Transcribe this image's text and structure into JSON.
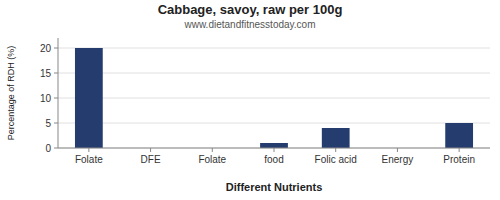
{
  "chart_data": {
    "type": "bar",
    "title": "Cabbage, savoy, raw per 100g",
    "subtitle": "www.dietandfitnesstoday.com",
    "x_label": "Different Nutrients",
    "y_label": "Percentage of RDH (%)",
    "categories": [
      "Folate",
      "DFE",
      "Folate",
      "food",
      "Folic acid",
      "Energy",
      "Protein"
    ],
    "values": [
      20,
      0,
      0,
      1,
      4,
      0,
      5
    ],
    "color": "#253c6e",
    "ylim": [
      0,
      22
    ],
    "yticks": [
      0,
      5,
      10,
      15,
      20
    ],
    "grid": true
  }
}
